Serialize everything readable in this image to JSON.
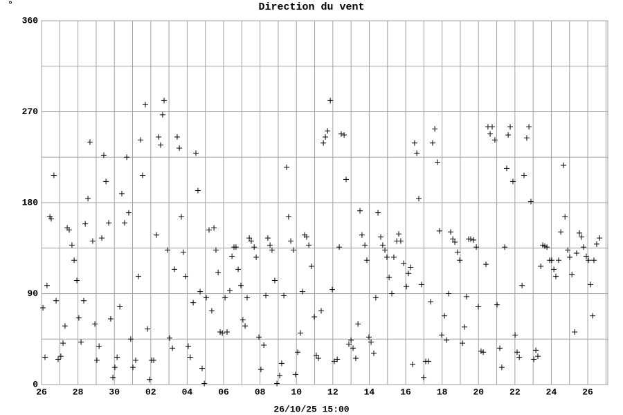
{
  "chart_data": {
    "type": "scatter",
    "title": "Direction du vent",
    "corner_mark": "°",
    "xlabel": "26/10/25 15:00",
    "xlim": [
      0,
      31.1
    ],
    "ylim": [
      0,
      360
    ],
    "xticks": [
      {
        "value": 0,
        "label": "26"
      },
      {
        "value": 2,
        "label": "28"
      },
      {
        "value": 4,
        "label": "30"
      },
      {
        "value": 6,
        "label": "02"
      },
      {
        "value": 8,
        "label": "04"
      },
      {
        "value": 10,
        "label": "06"
      },
      {
        "value": 12,
        "label": "08"
      },
      {
        "value": 14,
        "label": "10"
      },
      {
        "value": 16,
        "label": "12"
      },
      {
        "value": 18,
        "label": "14"
      },
      {
        "value": 20,
        "label": "16"
      },
      {
        "value": 22,
        "label": "18"
      },
      {
        "value": 24,
        "label": "20"
      },
      {
        "value": 26,
        "label": "22"
      },
      {
        "value": 28,
        "label": "24"
      },
      {
        "value": 30,
        "label": "26"
      }
    ],
    "yticks": [
      0,
      90,
      180,
      270,
      360
    ],
    "xgrid": [
      1,
      3,
      5,
      7,
      9,
      11,
      13,
      15,
      17,
      19,
      21,
      23,
      25,
      27,
      29,
      31
    ],
    "ygrid": [
      45,
      135,
      225,
      315
    ],
    "grid": true,
    "marker": "+",
    "color": "#000000",
    "x": [
      0.08,
      0.19,
      0.3,
      0.46,
      0.53,
      0.68,
      0.8,
      0.91,
      1.06,
      1.18,
      1.29,
      1.41,
      1.52,
      1.67,
      1.79,
      1.94,
      2.05,
      2.17,
      2.32,
      2.4,
      2.55,
      2.66,
      2.81,
      2.93,
      3.04,
      3.16,
      3.31,
      3.42,
      3.54,
      3.69,
      3.8,
      3.92,
      4.03,
      4.15,
      4.3,
      4.41,
      4.56,
      4.68,
      4.79,
      4.9,
      5.02,
      5.17,
      5.32,
      5.44,
      5.55,
      5.7,
      5.82,
      5.93,
      6.05,
      6.16,
      6.31,
      6.43,
      6.54,
      6.65,
      6.73,
      6.92,
      7.03,
      7.19,
      7.3,
      7.45,
      7.57,
      7.68,
      7.79,
      7.91,
      8.06,
      8.17,
      8.33,
      8.48,
      8.59,
      8.71,
      8.82,
      8.94,
      9.05,
      9.2,
      9.35,
      9.47,
      9.58,
      9.7,
      9.81,
      9.93,
      10.08,
      10.19,
      10.34,
      10.46,
      10.57,
      10.68,
      10.8,
      10.95,
      11.06,
      11.18,
      11.29,
      11.41,
      11.52,
      11.68,
      11.79,
      11.94,
      12.05,
      12.21,
      12.32,
      12.43,
      12.55,
      12.66,
      12.81,
      12.93,
      13.08,
      13.19,
      13.31,
      13.46,
      13.57,
      13.69,
      13.84,
      13.95,
      14.07,
      14.22,
      14.33,
      14.45,
      14.56,
      14.68,
      14.83,
      14.98,
      15.09,
      15.21,
      15.36,
      15.48,
      15.59,
      15.71,
      15.86,
      15.97,
      16.08,
      16.24,
      16.35,
      16.46,
      16.62,
      16.73,
      16.88,
      17.0,
      17.11,
      17.26,
      17.38,
      17.49,
      17.6,
      17.76,
      17.87,
      17.98,
      18.1,
      18.25,
      18.36,
      18.48,
      18.63,
      18.74,
      18.86,
      18.97,
      19.09,
      19.24,
      19.35,
      19.51,
      19.62,
      19.73,
      19.89,
      20.04,
      20.15,
      20.27,
      20.38,
      20.49,
      20.61,
      20.72,
      20.87,
      20.99,
      21.1,
      21.25,
      21.37,
      21.48,
      21.6,
      21.75,
      21.86,
      21.98,
      22.13,
      22.24,
      22.36,
      22.47,
      22.59,
      22.7,
      22.85,
      22.97,
      23.12,
      23.23,
      23.34,
      23.46,
      23.57,
      23.73,
      23.88,
      23.99,
      24.14,
      24.26,
      24.41,
      24.52,
      24.64,
      24.75,
      24.9,
      25.02,
      25.17,
      25.28,
      25.44,
      25.55,
      25.63,
      25.74,
      25.89,
      26.01,
      26.12,
      26.24,
      26.39,
      26.5,
      26.65,
      26.77,
      26.88,
      27.04,
      27.15,
      27.26,
      27.42,
      27.53,
      27.64,
      27.76,
      27.91,
      28.02,
      28.14,
      28.25,
      28.4,
      28.52,
      28.67,
      28.75,
      28.9,
      29.01,
      29.13,
      29.28,
      29.39,
      29.54,
      29.66,
      29.77,
      29.92,
      30.04,
      30.15,
      30.27,
      30.34,
      30.49,
      30.65
    ],
    "values": [
      76,
      27,
      98,
      166,
      164,
      207,
      83,
      25,
      28,
      41,
      58,
      155,
      153,
      138,
      123,
      103,
      66,
      42,
      83,
      159,
      184,
      240,
      142,
      60,
      24,
      38,
      145,
      227,
      201,
      160,
      65,
      7,
      17,
      27,
      77,
      189,
      160,
      225,
      170,
      45,
      17,
      24,
      107,
      242,
      207,
      277,
      55,
      5,
      24,
      24,
      148,
      245,
      237,
      267,
      281,
      133,
      46,
      36,
      114,
      245,
      234,
      166,
      131,
      107,
      38,
      27,
      81,
      229,
      192,
      92,
      16,
      1,
      86,
      153,
      73,
      155,
      133,
      111,
      52,
      51,
      86,
      52,
      93,
      127,
      136,
      136,
      114,
      98,
      64,
      58,
      86,
      145,
      142,
      136,
      126,
      47,
      15,
      39,
      88,
      145,
      138,
      133,
      103,
      1,
      9,
      21,
      88,
      215,
      166,
      142,
      133,
      10,
      32,
      51,
      92,
      148,
      146,
      138,
      117,
      67,
      29,
      26,
      73,
      239,
      245,
      251,
      281,
      94,
      23,
      25,
      136,
      248,
      247,
      203,
      40,
      44,
      36,
      26,
      60,
      172,
      148,
      138,
      123,
      47,
      42,
      31,
      86,
      170,
      146,
      138,
      133,
      126,
      106,
      90,
      126,
      142,
      149,
      142,
      120,
      97,
      110,
      116,
      20,
      239,
      229,
      184,
      99,
      7,
      23,
      23,
      82,
      239,
      253,
      220,
      152,
      49,
      68,
      44,
      90,
      151,
      144,
      141,
      131,
      123,
      41,
      57,
      87,
      144,
      144,
      143,
      136,
      77,
      33,
      32,
      119,
      255,
      248,
      255,
      242,
      79,
      36,
      17,
      136,
      214,
      247,
      255,
      201,
      49,
      32,
      27,
      98,
      207,
      244,
      255,
      181,
      25,
      34,
      28,
      117,
      138,
      137,
      136,
      123,
      123,
      114,
      107,
      123,
      151,
      217,
      166,
      133,
      126,
      109,
      52,
      130,
      150,
      146,
      136,
      127,
      123,
      99,
      68,
      123,
      139,
      145
    ]
  }
}
